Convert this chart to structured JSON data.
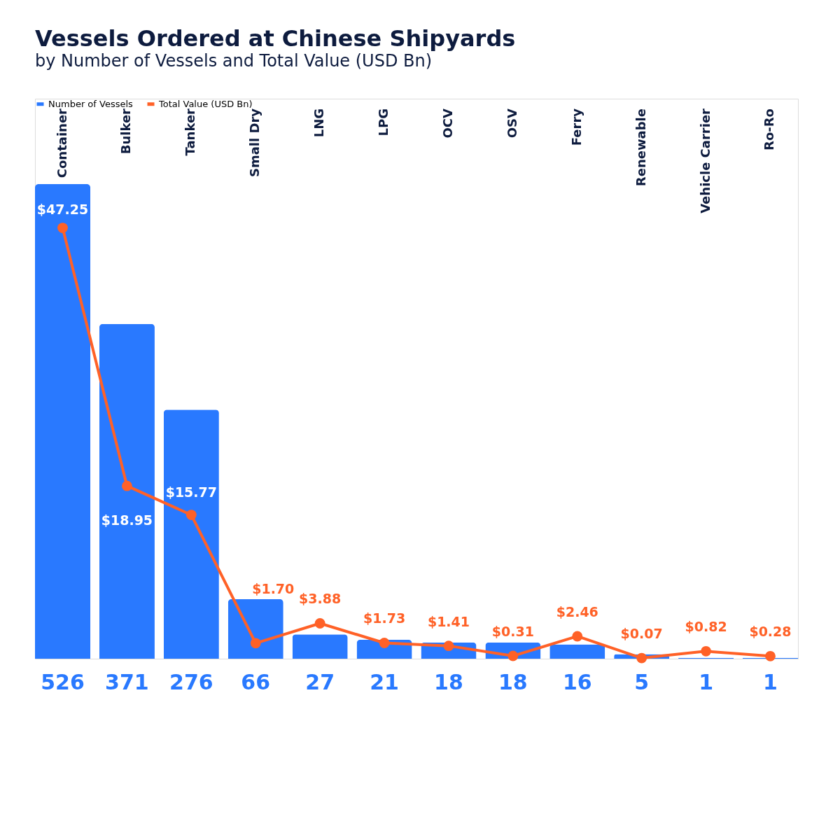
{
  "chart_data": {
    "type": "bar",
    "title": "Vessels Ordered at Chinese Shipyards",
    "subtitle": "by Number of Vessels and Total Value (USD Bn)",
    "categories": [
      "Container",
      "Bulker",
      "Tanker",
      "Small Dry",
      "LNG",
      "LPG",
      "OCV",
      "OSV",
      "Ferry",
      "Renewable",
      "Vehicle Carrier",
      "Ro-Ro"
    ],
    "series": [
      {
        "name": "Number of Vessels",
        "color": "#2979ff",
        "values": [
          526,
          371,
          276,
          66,
          27,
          21,
          18,
          18,
          16,
          5,
          1,
          1
        ]
      },
      {
        "name": "Total Value (USD Bn)",
        "type": "line",
        "axis": "y2",
        "color": "#ff6127",
        "marker": "circle",
        "values": [
          47.25,
          18.95,
          15.77,
          1.7,
          3.88,
          1.73,
          1.41,
          0.31,
          2.46,
          0.07,
          0.82,
          0.28
        ],
        "value_labels": [
          "$47.25",
          "$18.95",
          "$15.77",
          "$1.70",
          "$3.88",
          "$1.73",
          "$1.41",
          "$0.31",
          "$2.46",
          "$0.07",
          "$0.82",
          "$0.28"
        ]
      }
    ],
    "data_labels": true,
    "legend": "top left",
    "grid": false,
    "tick_labels": false
  }
}
